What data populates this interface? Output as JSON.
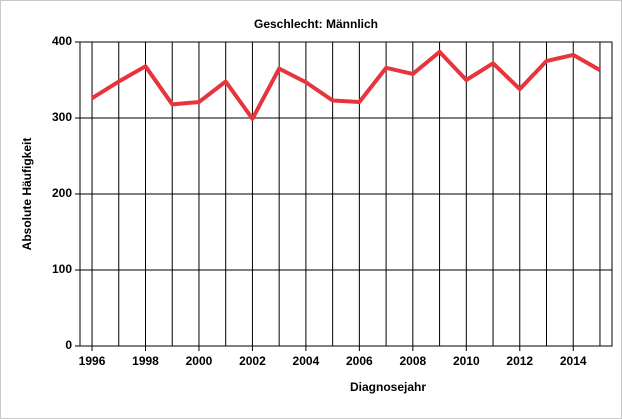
{
  "chart_data": {
    "type": "line",
    "title": "Geschlecht: Männlich",
    "xlabel": "Diagnosejahr",
    "ylabel": "Absolute Häufigkeit",
    "x": [
      1996,
      1997,
      1998,
      1999,
      2000,
      2001,
      2002,
      2003,
      2004,
      2005,
      2006,
      2007,
      2008,
      2009,
      2010,
      2011,
      2012,
      2013,
      2014,
      2015
    ],
    "series": [
      {
        "name": "Männlich",
        "color": "#e8343c",
        "values": [
          326,
          348,
          368,
          318,
          321,
          348,
          299,
          365,
          347,
          323,
          321,
          366,
          358,
          387,
          350,
          372,
          338,
          375,
          383,
          363
        ]
      }
    ],
    "xlim": [
      1995.55,
      2015.45
    ],
    "xticks": [
      1996,
      1998,
      2000,
      2002,
      2004,
      2006,
      2008,
      2010,
      2012,
      2014
    ],
    "ylim": [
      0,
      400
    ],
    "yticks": [
      0,
      100,
      200,
      300,
      400
    ],
    "grid": true
  }
}
